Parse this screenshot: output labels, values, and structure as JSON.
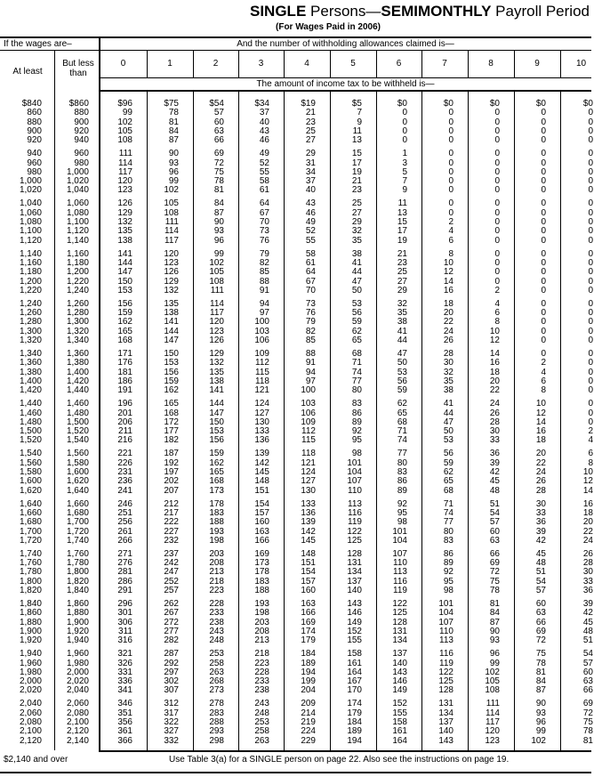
{
  "title": {
    "single": "SINGLE",
    "persons": " Persons—",
    "semimonthly": "SEMIMONTHLY",
    "period": " Payroll Period"
  },
  "subtitle": "(For Wages Paid in 2006)",
  "header": {
    "wages": "If the wages are–",
    "allowances": "And the number of withholding allowances claimed is—",
    "at_least": "At least",
    "but_less_than": "But less than",
    "columns": [
      "0",
      "1",
      "2",
      "3",
      "4",
      "5",
      "6",
      "7",
      "8",
      "9",
      "10"
    ],
    "amount": "The amount of income tax to be withheld is—"
  },
  "rows": [
    [
      "$840",
      "$860",
      "$96",
      "$75",
      "$54",
      "$34",
      "$19",
      "$5",
      "$0",
      "$0",
      "$0",
      "$0",
      "$0"
    ],
    [
      "860",
      "880",
      "99",
      "78",
      "57",
      "37",
      "21",
      "7",
      "0",
      "0",
      "0",
      "0",
      "0"
    ],
    [
      "880",
      "900",
      "102",
      "81",
      "60",
      "40",
      "23",
      "9",
      "0",
      "0",
      "0",
      "0",
      "0"
    ],
    [
      "900",
      "920",
      "105",
      "84",
      "63",
      "43",
      "25",
      "11",
      "0",
      "0",
      "0",
      "0",
      "0"
    ],
    [
      "920",
      "940",
      "108",
      "87",
      "66",
      "46",
      "27",
      "13",
      "0",
      "0",
      "0",
      "0",
      "0"
    ],
    [
      "940",
      "960",
      "111",
      "90",
      "69",
      "49",
      "29",
      "15",
      "1",
      "0",
      "0",
      "0",
      "0"
    ],
    [
      "960",
      "980",
      "114",
      "93",
      "72",
      "52",
      "31",
      "17",
      "3",
      "0",
      "0",
      "0",
      "0"
    ],
    [
      "980",
      "1,000",
      "117",
      "96",
      "75",
      "55",
      "34",
      "19",
      "5",
      "0",
      "0",
      "0",
      "0"
    ],
    [
      "1,000",
      "1,020",
      "120",
      "99",
      "78",
      "58",
      "37",
      "21",
      "7",
      "0",
      "0",
      "0",
      "0"
    ],
    [
      "1,020",
      "1,040",
      "123",
      "102",
      "81",
      "61",
      "40",
      "23",
      "9",
      "0",
      "0",
      "0",
      "0"
    ],
    [
      "1,040",
      "1,060",
      "126",
      "105",
      "84",
      "64",
      "43",
      "25",
      "11",
      "0",
      "0",
      "0",
      "0"
    ],
    [
      "1,060",
      "1,080",
      "129",
      "108",
      "87",
      "67",
      "46",
      "27",
      "13",
      "0",
      "0",
      "0",
      "0"
    ],
    [
      "1,080",
      "1,100",
      "132",
      "111",
      "90",
      "70",
      "49",
      "29",
      "15",
      "2",
      "0",
      "0",
      "0"
    ],
    [
      "1,100",
      "1,120",
      "135",
      "114",
      "93",
      "73",
      "52",
      "32",
      "17",
      "4",
      "0",
      "0",
      "0"
    ],
    [
      "1,120",
      "1,140",
      "138",
      "117",
      "96",
      "76",
      "55",
      "35",
      "19",
      "6",
      "0",
      "0",
      "0"
    ],
    [
      "1,140",
      "1,160",
      "141",
      "120",
      "99",
      "79",
      "58",
      "38",
      "21",
      "8",
      "0",
      "0",
      "0"
    ],
    [
      "1,160",
      "1,180",
      "144",
      "123",
      "102",
      "82",
      "61",
      "41",
      "23",
      "10",
      "0",
      "0",
      "0"
    ],
    [
      "1,180",
      "1,200",
      "147",
      "126",
      "105",
      "85",
      "64",
      "44",
      "25",
      "12",
      "0",
      "0",
      "0"
    ],
    [
      "1,200",
      "1,220",
      "150",
      "129",
      "108",
      "88",
      "67",
      "47",
      "27",
      "14",
      "0",
      "0",
      "0"
    ],
    [
      "1,220",
      "1,240",
      "153",
      "132",
      "111",
      "91",
      "70",
      "50",
      "29",
      "16",
      "2",
      "0",
      "0"
    ],
    [
      "1,240",
      "1,260",
      "156",
      "135",
      "114",
      "94",
      "73",
      "53",
      "32",
      "18",
      "4",
      "0",
      "0"
    ],
    [
      "1,260",
      "1,280",
      "159",
      "138",
      "117",
      "97",
      "76",
      "56",
      "35",
      "20",
      "6",
      "0",
      "0"
    ],
    [
      "1,280",
      "1,300",
      "162",
      "141",
      "120",
      "100",
      "79",
      "59",
      "38",
      "22",
      "8",
      "0",
      "0"
    ],
    [
      "1,300",
      "1,320",
      "165",
      "144",
      "123",
      "103",
      "82",
      "62",
      "41",
      "24",
      "10",
      "0",
      "0"
    ],
    [
      "1,320",
      "1,340",
      "168",
      "147",
      "126",
      "106",
      "85",
      "65",
      "44",
      "26",
      "12",
      "0",
      "0"
    ],
    [
      "1,340",
      "1,360",
      "171",
      "150",
      "129",
      "109",
      "88",
      "68",
      "47",
      "28",
      "14",
      "0",
      "0"
    ],
    [
      "1,360",
      "1,380",
      "176",
      "153",
      "132",
      "112",
      "91",
      "71",
      "50",
      "30",
      "16",
      "2",
      "0"
    ],
    [
      "1,380",
      "1,400",
      "181",
      "156",
      "135",
      "115",
      "94",
      "74",
      "53",
      "32",
      "18",
      "4",
      "0"
    ],
    [
      "1,400",
      "1,420",
      "186",
      "159",
      "138",
      "118",
      "97",
      "77",
      "56",
      "35",
      "20",
      "6",
      "0"
    ],
    [
      "1,420",
      "1,440",
      "191",
      "162",
      "141",
      "121",
      "100",
      "80",
      "59",
      "38",
      "22",
      "8",
      "0"
    ],
    [
      "1,440",
      "1,460",
      "196",
      "165",
      "144",
      "124",
      "103",
      "83",
      "62",
      "41",
      "24",
      "10",
      "0"
    ],
    [
      "1,460",
      "1,480",
      "201",
      "168",
      "147",
      "127",
      "106",
      "86",
      "65",
      "44",
      "26",
      "12",
      "0"
    ],
    [
      "1,480",
      "1,500",
      "206",
      "172",
      "150",
      "130",
      "109",
      "89",
      "68",
      "47",
      "28",
      "14",
      "0"
    ],
    [
      "1,500",
      "1,520",
      "211",
      "177",
      "153",
      "133",
      "112",
      "92",
      "71",
      "50",
      "30",
      "16",
      "2"
    ],
    [
      "1,520",
      "1,540",
      "216",
      "182",
      "156",
      "136",
      "115",
      "95",
      "74",
      "53",
      "33",
      "18",
      "4"
    ],
    [
      "1,540",
      "1,560",
      "221",
      "187",
      "159",
      "139",
      "118",
      "98",
      "77",
      "56",
      "36",
      "20",
      "6"
    ],
    [
      "1,560",
      "1,580",
      "226",
      "192",
      "162",
      "142",
      "121",
      "101",
      "80",
      "59",
      "39",
      "22",
      "8"
    ],
    [
      "1,580",
      "1,600",
      "231",
      "197",
      "165",
      "145",
      "124",
      "104",
      "83",
      "62",
      "42",
      "24",
      "10"
    ],
    [
      "1,600",
      "1,620",
      "236",
      "202",
      "168",
      "148",
      "127",
      "107",
      "86",
      "65",
      "45",
      "26",
      "12"
    ],
    [
      "1,620",
      "1,640",
      "241",
      "207",
      "173",
      "151",
      "130",
      "110",
      "89",
      "68",
      "48",
      "28",
      "14"
    ],
    [
      "1,640",
      "1,660",
      "246",
      "212",
      "178",
      "154",
      "133",
      "113",
      "92",
      "71",
      "51",
      "30",
      "16"
    ],
    [
      "1,660",
      "1,680",
      "251",
      "217",
      "183",
      "157",
      "136",
      "116",
      "95",
      "74",
      "54",
      "33",
      "18"
    ],
    [
      "1,680",
      "1,700",
      "256",
      "222",
      "188",
      "160",
      "139",
      "119",
      "98",
      "77",
      "57",
      "36",
      "20"
    ],
    [
      "1,700",
      "1,720",
      "261",
      "227",
      "193",
      "163",
      "142",
      "122",
      "101",
      "80",
      "60",
      "39",
      "22"
    ],
    [
      "1,720",
      "1,740",
      "266",
      "232",
      "198",
      "166",
      "145",
      "125",
      "104",
      "83",
      "63",
      "42",
      "24"
    ],
    [
      "1,740",
      "1,760",
      "271",
      "237",
      "203",
      "169",
      "148",
      "128",
      "107",
      "86",
      "66",
      "45",
      "26"
    ],
    [
      "1,760",
      "1,780",
      "276",
      "242",
      "208",
      "173",
      "151",
      "131",
      "110",
      "89",
      "69",
      "48",
      "28"
    ],
    [
      "1,780",
      "1,800",
      "281",
      "247",
      "213",
      "178",
      "154",
      "134",
      "113",
      "92",
      "72",
      "51",
      "30"
    ],
    [
      "1,800",
      "1,820",
      "286",
      "252",
      "218",
      "183",
      "157",
      "137",
      "116",
      "95",
      "75",
      "54",
      "33"
    ],
    [
      "1,820",
      "1,840",
      "291",
      "257",
      "223",
      "188",
      "160",
      "140",
      "119",
      "98",
      "78",
      "57",
      "36"
    ],
    [
      "1,840",
      "1,860",
      "296",
      "262",
      "228",
      "193",
      "163",
      "143",
      "122",
      "101",
      "81",
      "60",
      "39"
    ],
    [
      "1,860",
      "1,880",
      "301",
      "267",
      "233",
      "198",
      "166",
      "146",
      "125",
      "104",
      "84",
      "63",
      "42"
    ],
    [
      "1,880",
      "1,900",
      "306",
      "272",
      "238",
      "203",
      "169",
      "149",
      "128",
      "107",
      "87",
      "66",
      "45"
    ],
    [
      "1,900",
      "1,920",
      "311",
      "277",
      "243",
      "208",
      "174",
      "152",
      "131",
      "110",
      "90",
      "69",
      "48"
    ],
    [
      "1,920",
      "1,940",
      "316",
      "282",
      "248",
      "213",
      "179",
      "155",
      "134",
      "113",
      "93",
      "72",
      "51"
    ],
    [
      "1,940",
      "1,960",
      "321",
      "287",
      "253",
      "218",
      "184",
      "158",
      "137",
      "116",
      "96",
      "75",
      "54"
    ],
    [
      "1,960",
      "1,980",
      "326",
      "292",
      "258",
      "223",
      "189",
      "161",
      "140",
      "119",
      "99",
      "78",
      "57"
    ],
    [
      "1,980",
      "2,000",
      "331",
      "297",
      "263",
      "228",
      "194",
      "164",
      "143",
      "122",
      "102",
      "81",
      "60"
    ],
    [
      "2,000",
      "2,020",
      "336",
      "302",
      "268",
      "233",
      "199",
      "167",
      "146",
      "125",
      "105",
      "84",
      "63"
    ],
    [
      "2,020",
      "2,040",
      "341",
      "307",
      "273",
      "238",
      "204",
      "170",
      "149",
      "128",
      "108",
      "87",
      "66"
    ],
    [
      "2,040",
      "2,060",
      "346",
      "312",
      "278",
      "243",
      "209",
      "174",
      "152",
      "131",
      "111",
      "90",
      "69"
    ],
    [
      "2,060",
      "2,080",
      "351",
      "317",
      "283",
      "248",
      "214",
      "179",
      "155",
      "134",
      "114",
      "93",
      "72"
    ],
    [
      "2,080",
      "2,100",
      "356",
      "322",
      "288",
      "253",
      "219",
      "184",
      "158",
      "137",
      "117",
      "96",
      "75"
    ],
    [
      "2,100",
      "2,120",
      "361",
      "327",
      "293",
      "258",
      "224",
      "189",
      "161",
      "140",
      "120",
      "99",
      "78"
    ],
    [
      "2,120",
      "2,140",
      "366",
      "332",
      "298",
      "263",
      "229",
      "194",
      "164",
      "143",
      "123",
      "102",
      "81"
    ]
  ],
  "footer": {
    "over": "$2,140 and over",
    "note": "Use Table 3(a) for a SINGLE person on page 22. Also see the instructions on page 19."
  }
}
